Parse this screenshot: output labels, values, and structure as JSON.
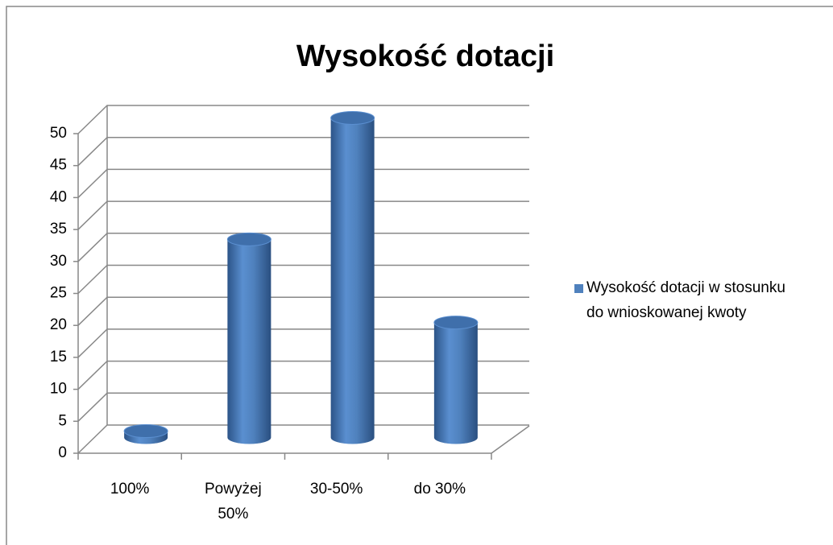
{
  "chart_data": {
    "type": "bar",
    "title": "Wysokość dotacji",
    "categories": [
      "100%",
      "Powyżej 50%",
      "30-50%",
      "do 30%"
    ],
    "series": [
      {
        "name": "Wysokość dotacji w stosunku do wnioskowanej kwoty",
        "color": "#4f81bd",
        "values": [
          1,
          31,
          50,
          18
        ]
      }
    ],
    "ylim": [
      0,
      50
    ],
    "yticks": [
      0,
      5,
      10,
      15,
      20,
      25,
      30,
      35,
      40,
      45,
      50
    ],
    "grid": true,
    "legend": "right"
  }
}
